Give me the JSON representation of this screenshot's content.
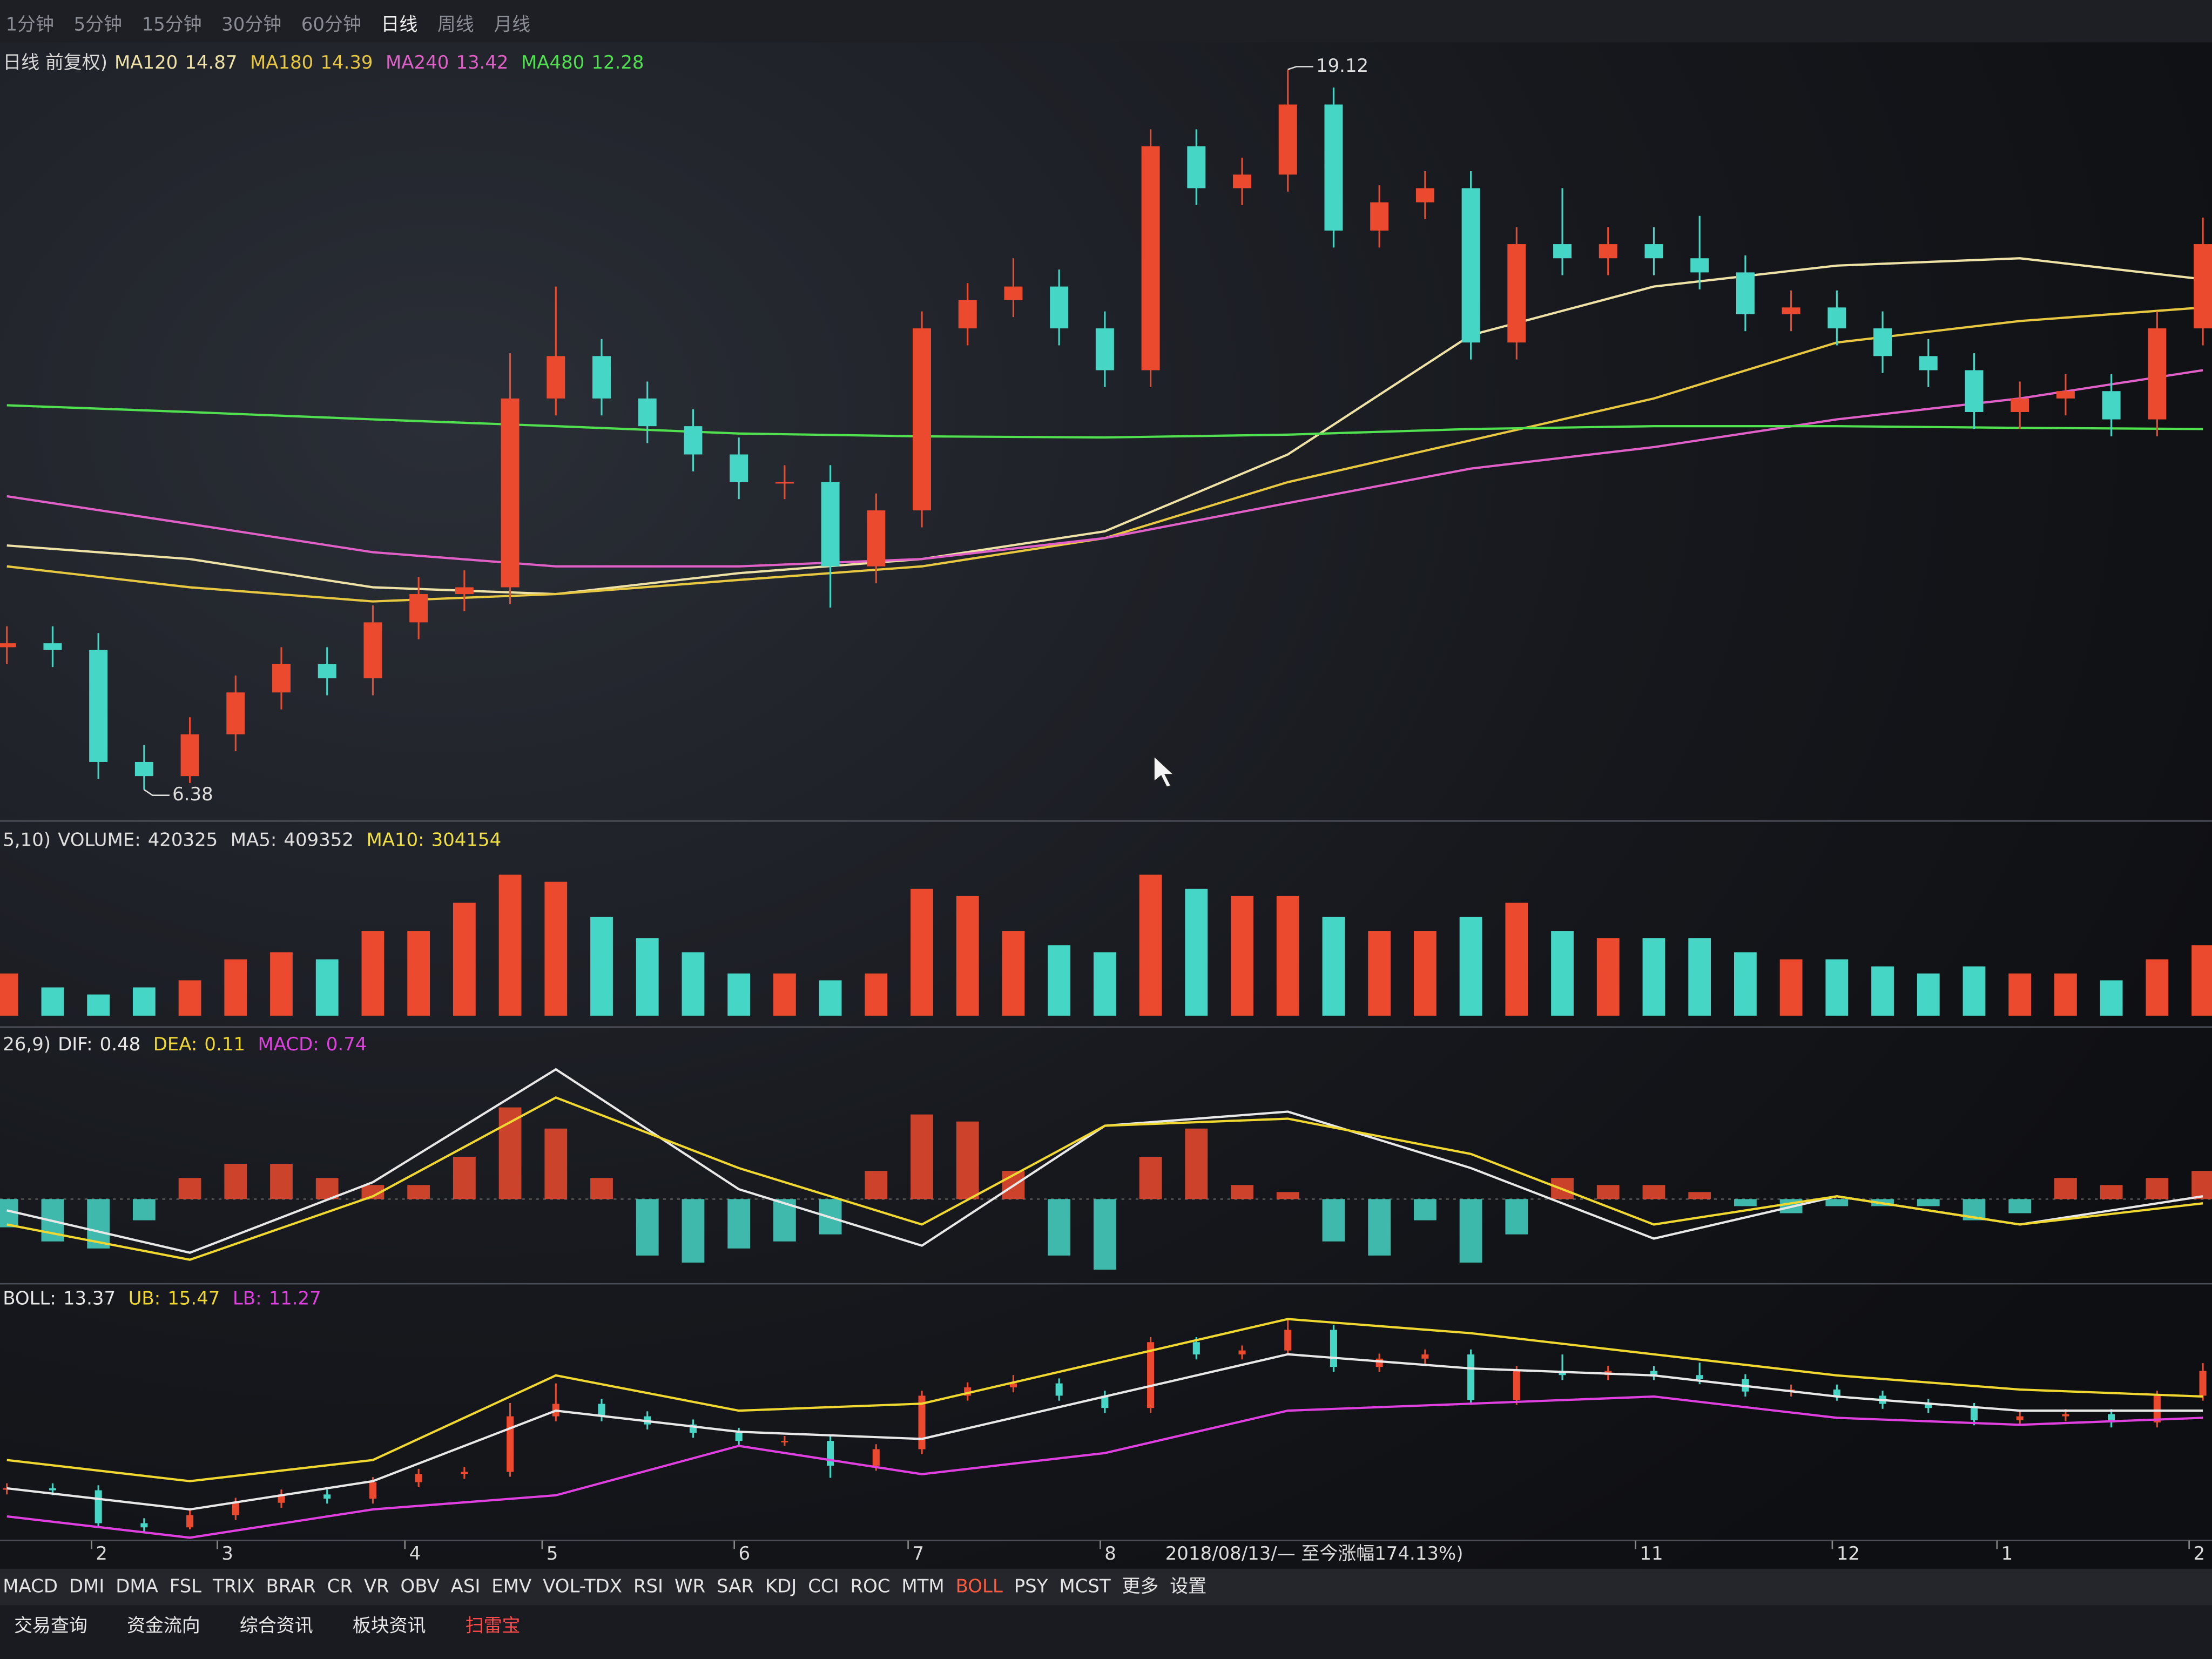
{
  "toolbar": {
    "periods": [
      "1分钟",
      "5分钟",
      "15分钟",
      "30分钟",
      "60分钟",
      "日线",
      "周线",
      "月线"
    ],
    "active": 5
  },
  "chart_data": [
    {
      "type": "candlestick",
      "title": "日线 前复权)",
      "open": [
        8.9,
        8.97,
        8.85,
        6.87,
        6.62,
        7.36,
        8.1,
        8.6,
        8.35,
        9.34,
        9.84,
        9.96,
        13.3,
        14.05,
        13.3,
        12.81,
        12.31,
        11.82,
        11.82,
        10.33,
        11.32,
        14.54,
        15.04,
        15.28,
        14.54,
        13.8,
        17.76,
        17.02,
        17.26,
        18.5,
        16.27,
        16.77,
        17.02,
        14.29,
        16.03,
        15.78,
        16.03,
        15.78,
        15.53,
        14.79,
        14.91,
        14.54,
        14.05,
        13.8,
        13.06,
        13.3,
        13.43,
        12.93,
        14.54
      ],
      "high": [
        9.27,
        9.27,
        9.15,
        7.17,
        7.66,
        8.4,
        8.9,
        8.9,
        9.64,
        10.14,
        10.26,
        14.1,
        15.28,
        14.35,
        13.6,
        13.11,
        12.61,
        12.12,
        12.12,
        11.62,
        14.84,
        15.34,
        15.78,
        15.58,
        14.84,
        18.06,
        18.06,
        17.56,
        19.12,
        18.8,
        17.07,
        17.32,
        17.32,
        16.33,
        17.02,
        16.33,
        16.33,
        16.53,
        15.83,
        15.21,
        15.21,
        14.84,
        14.35,
        14.1,
        13.6,
        13.73,
        13.73,
        14.84,
        16.5
      ],
      "low": [
        8.6,
        8.55,
        6.57,
        6.38,
        6.5,
        7.06,
        7.8,
        8.05,
        8.05,
        9.04,
        9.54,
        9.66,
        13.0,
        13.0,
        12.51,
        12.01,
        11.52,
        11.52,
        9.6,
        10.03,
        11.02,
        14.24,
        14.74,
        14.24,
        13.5,
        13.5,
        16.72,
        16.72,
        16.96,
        15.97,
        15.97,
        16.47,
        13.99,
        13.99,
        15.48,
        15.48,
        15.48,
        15.23,
        14.49,
        14.49,
        14.24,
        13.75,
        13.5,
        12.76,
        12.76,
        13.0,
        12.63,
        12.63,
        14.24
      ],
      "close": [
        8.97,
        8.85,
        6.87,
        6.62,
        7.36,
        8.1,
        8.6,
        8.35,
        9.34,
        9.84,
        9.96,
        13.3,
        14.05,
        13.3,
        12.81,
        12.31,
        11.82,
        11.82,
        10.33,
        11.32,
        14.54,
        15.04,
        15.28,
        14.54,
        13.8,
        17.76,
        17.02,
        17.26,
        18.5,
        16.27,
        16.77,
        17.02,
        14.29,
        16.03,
        15.78,
        16.03,
        15.78,
        15.53,
        14.79,
        14.91,
        14.54,
        14.05,
        13.8,
        13.06,
        13.3,
        13.43,
        12.93,
        14.54,
        16.03
      ],
      "up_color": "#ec4a2e",
      "down_color": "#45d6c6",
      "xlim": [
        -0.15,
        48.2
      ],
      "ylim": [
        6.0,
        19.5
      ],
      "xticks": [
        {
          "value": 1.85,
          "label": "2"
        },
        {
          "value": 4.6,
          "label": "3"
        },
        {
          "value": 8.7,
          "label": "4"
        },
        {
          "value": 11.7,
          "label": "5"
        },
        {
          "value": 15.9,
          "label": "6"
        },
        {
          "value": 19.7,
          "label": "7"
        },
        {
          "value": 23.9,
          "label": "8"
        },
        {
          "value": 35.6,
          "label": "11"
        },
        {
          "value": 39.9,
          "label": "12"
        },
        {
          "value": 43.5,
          "label": "1"
        },
        {
          "value": 47.7,
          "label": "2"
        }
      ],
      "range_note": "2018/08/13/— 至今涨幅174.13%)",
      "series": [
        {
          "name": "MA120",
          "latest": 14.87,
          "color": "#efe2a6",
          "x": [
            0,
            4,
            8,
            12,
            16,
            20,
            24,
            28,
            32,
            36,
            40,
            44,
            48
          ],
          "values": [
            10.7,
            10.46,
            9.96,
            9.84,
            10.21,
            10.46,
            10.95,
            12.31,
            14.42,
            15.28,
            15.65,
            15.78,
            15.41
          ]
        },
        {
          "name": "MA180",
          "latest": 14.39,
          "color": "#e8c840",
          "x": [
            0,
            4,
            8,
            12,
            16,
            20,
            24,
            28,
            32,
            36,
            40,
            44,
            48
          ],
          "values": [
            10.33,
            9.96,
            9.71,
            9.84,
            10.09,
            10.33,
            10.83,
            11.82,
            12.56,
            13.3,
            14.29,
            14.67,
            14.91
          ]
        },
        {
          "name": "MA240",
          "latest": 13.42,
          "color": "#e060c8",
          "x": [
            0,
            4,
            8,
            12,
            16,
            20,
            24,
            28,
            32,
            36,
            40,
            44,
            48
          ],
          "values": [
            11.57,
            11.08,
            10.58,
            10.33,
            10.33,
            10.46,
            10.83,
            11.45,
            12.06,
            12.44,
            12.93,
            13.3,
            13.8
          ]
        },
        {
          "name": "MA480",
          "latest": 12.28,
          "color": "#50e050",
          "x": [
            0,
            4,
            8,
            12,
            16,
            20,
            24,
            28,
            32,
            36,
            40,
            44,
            48
          ],
          "values": [
            13.18,
            13.06,
            12.93,
            12.81,
            12.68,
            12.63,
            12.61,
            12.66,
            12.76,
            12.81,
            12.81,
            12.78,
            12.76
          ]
        }
      ]
    },
    {
      "type": "volume",
      "legend_prefix": "5,10)",
      "ylim": [
        0,
        900000
      ],
      "series": [
        {
          "name": "VOLUME:",
          "latest": 420325,
          "color": "#e0e0e0",
          "values": [
            245000,
            164000,
            123000,
            164000,
            205000,
            327000,
            368000,
            327000,
            491000,
            491000,
            655000,
            818000,
            777000,
            573000,
            450000,
            368000,
            245000,
            245000,
            205000,
            245000,
            736000,
            695000,
            491000,
            409000,
            368000,
            818000,
            736000,
            695000,
            695000,
            573000,
            491000,
            491000,
            573000,
            655000,
            491000,
            450000,
            450000,
            450000,
            368000,
            327000,
            327000,
            286000,
            245000,
            286000,
            245000,
            245000,
            205000,
            327000,
            409000
          ]
        },
        {
          "name": "MA5:",
          "latest": 409352,
          "color": "#e0e0e0"
        },
        {
          "name": "MA10:",
          "latest": 304154,
          "color": "#f0e040"
        }
      ]
    },
    {
      "type": "macd",
      "legend_prefix": "26,9)",
      "ylim": [
        -1.1,
        2.1
      ],
      "series": [
        {
          "name": "DIF:",
          "latest": 0.48,
          "color": "#e8e8e8",
          "x": [
            0,
            4,
            8,
            12,
            16,
            20,
            24,
            28,
            32,
            36,
            40,
            44,
            48
          ],
          "values": [
            -0.16,
            -0.76,
            0.24,
            1.84,
            0.14,
            -0.66,
            1.04,
            1.24,
            0.44,
            -0.56,
            0.04,
            -0.36,
            0.04
          ]
        },
        {
          "name": "DEA:",
          "latest": 0.11,
          "color": "#f0d830",
          "x": [
            0,
            4,
            8,
            12,
            16,
            20,
            24,
            28,
            32,
            36,
            40,
            44,
            48
          ],
          "values": [
            -0.36,
            -0.86,
            0.04,
            1.44,
            0.44,
            -0.36,
            1.04,
            1.14,
            0.64,
            -0.36,
            0.04,
            -0.36,
            -0.06
          ]
        },
        {
          "name": "MACD:",
          "latest": 0.74,
          "color": "#e040e0",
          "values": [
            -0.4,
            -0.6,
            -0.7,
            -0.3,
            0.3,
            0.5,
            0.5,
            0.3,
            0.2,
            0.2,
            0.6,
            1.3,
            1.0,
            0.3,
            -0.8,
            -0.9,
            -0.7,
            -0.6,
            -0.5,
            0.4,
            1.2,
            1.1,
            0.4,
            -0.8,
            -1.0,
            0.6,
            1.0,
            0.2,
            0.1,
            -0.6,
            -0.8,
            -0.3,
            -0.9,
            -0.5,
            0.3,
            0.2,
            0.2,
            0.1,
            -0.1,
            -0.2,
            -0.1,
            -0.1,
            -0.1,
            -0.3,
            -0.2,
            0.3,
            0.2,
            0.3,
            0.4
          ]
        }
      ]
    },
    {
      "type": "boll",
      "ylim": [
        6,
        20
      ],
      "series": [
        {
          "name": "BOLL:",
          "latest": 13.37,
          "color": "#e8e8e8",
          "x": [
            0,
            4,
            8,
            12,
            16,
            20,
            24,
            28,
            32,
            36,
            40,
            44,
            48
          ],
          "values": [
            8.97,
            7.7,
            9.4,
            13.64,
            12.37,
            11.94,
            14.49,
            17.03,
            16.18,
            15.76,
            14.49,
            13.64,
            13.64
          ]
        },
        {
          "name": "UB:",
          "latest": 15.47,
          "color": "#f0d830",
          "x": [
            0,
            4,
            8,
            12,
            16,
            20,
            24,
            28,
            32,
            36,
            40,
            44,
            48
          ],
          "values": [
            10.67,
            9.4,
            10.67,
            15.76,
            13.64,
            14.06,
            16.61,
            19.15,
            18.3,
            17.03,
            15.76,
            14.91,
            14.49
          ]
        },
        {
          "name": "LB:",
          "latest": 11.27,
          "color": "#e040e0",
          "x": [
            0,
            4,
            8,
            12,
            16,
            20,
            24,
            28,
            32,
            36,
            40,
            44,
            48
          ],
          "values": [
            7.28,
            6.0,
            7.7,
            8.55,
            11.52,
            9.82,
            11.09,
            13.64,
            14.06,
            14.49,
            13.21,
            12.79,
            13.21
          ]
        }
      ]
    }
  ],
  "indicator_tabs": {
    "items": [
      "MACD",
      "DMI",
      "DMA",
      "FSL",
      "TRIX",
      "BRAR",
      "CR",
      "VR",
      "OBV",
      "ASI",
      "EMV",
      "VOL-TDX",
      "RSI",
      "WR",
      "SAR",
      "KDJ",
      "CCI",
      "ROC",
      "MTM",
      "BOLL",
      "PSY",
      "MCST",
      "更多",
      "设置"
    ],
    "active": 19
  },
  "bottom_tabs": {
    "items": [
      "交易查询",
      "资金流向",
      "综合资讯",
      "板块资讯",
      "扫雷宝"
    ],
    "highlight": 4
  }
}
